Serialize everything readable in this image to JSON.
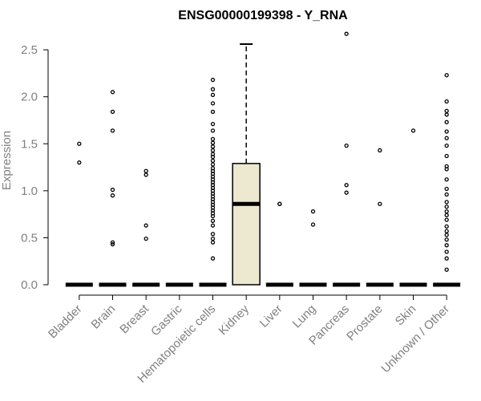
{
  "chart_data": {
    "type": "boxplot",
    "title": "ENSG00000199398 - Y_RNA",
    "xlabel": "",
    "ylabel": "Expression",
    "ylim": [
      0,
      2.6
    ],
    "yticks": [
      "0.0",
      "0.5",
      "1.0",
      "1.5",
      "2.0",
      "2.5"
    ],
    "categories": [
      "Bladder",
      "Brain",
      "Breast",
      "Gastric",
      "Hematopoietic cells",
      "Kidney",
      "Liver",
      "Lung",
      "Pancreas",
      "Prostate",
      "Skin",
      "Unknown / Other"
    ],
    "grid": false,
    "legend": "none",
    "colors": {
      "box_fill": "#EDE8D0",
      "stroke": "#000000",
      "tick_text": "#808080"
    },
    "boxes": [
      {
        "category": "Kidney",
        "q1": 0.0,
        "median": 0.86,
        "q3": 1.29,
        "whisker_low": 0.0,
        "whisker_high": 2.56
      }
    ],
    "points": [
      {
        "category": "Bladder",
        "values": [
          1.5,
          1.3
        ]
      },
      {
        "category": "Brain",
        "values": [
          2.05,
          1.84,
          1.64,
          1.01,
          0.95,
          0.45,
          0.43
        ]
      },
      {
        "category": "Breast",
        "values": [
          1.21,
          1.17,
          0.63,
          0.49
        ]
      },
      {
        "category": "Gastric",
        "values": []
      },
      {
        "category": "Hematopoietic cells",
        "values": [
          2.18,
          2.08,
          2.02,
          1.93,
          1.84,
          1.71,
          1.64,
          1.55,
          1.51,
          1.47,
          1.43,
          1.39,
          1.36,
          1.32,
          1.28,
          1.24,
          1.21,
          1.18,
          1.15,
          1.12,
          1.09,
          1.06,
          1.03,
          1.0,
          0.97,
          0.94,
          0.91,
          0.88,
          0.85,
          0.82,
          0.79,
          0.76,
          0.73,
          0.68,
          0.63,
          0.54,
          0.49,
          0.45,
          0.28
        ]
      },
      {
        "category": "Kidney",
        "values": []
      },
      {
        "category": "Liver",
        "values": [
          0.86,
          0.86
        ]
      },
      {
        "category": "Lung",
        "values": [
          0.78,
          0.64
        ]
      },
      {
        "category": "Pancreas",
        "values": [
          2.67,
          1.48,
          1.06,
          0.98
        ]
      },
      {
        "category": "Prostate",
        "values": [
          1.43,
          0.86
        ]
      },
      {
        "category": "Skin",
        "values": [
          1.64
        ]
      },
      {
        "category": "Unknown / Other",
        "values": [
          2.23,
          1.95,
          1.85,
          1.81,
          1.73,
          1.63,
          1.56,
          1.48,
          1.37,
          1.26,
          1.23,
          1.12,
          1.02,
          0.96,
          0.88,
          0.83,
          0.78,
          0.74,
          0.69,
          0.62,
          0.57,
          0.53,
          0.48,
          0.42,
          0.35,
          0.28,
          0.16
        ]
      }
    ]
  }
}
